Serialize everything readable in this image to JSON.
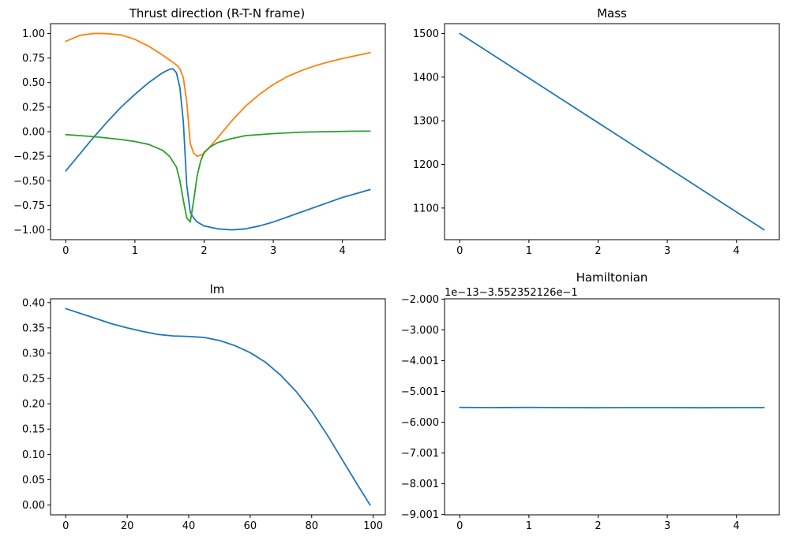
{
  "chart_data": [
    {
      "id": "thrust",
      "type": "line",
      "title": "Thrust direction (R-T-N frame)",
      "xlim": [
        -0.22,
        4.62
      ],
      "ylim": [
        -1.1,
        1.1
      ],
      "xticks": [
        0,
        1,
        2,
        3,
        4
      ],
      "xtick_labels": [
        "0",
        "1",
        "2",
        "3",
        "4"
      ],
      "yticks": [
        1.0,
        0.75,
        0.5,
        0.25,
        0.0,
        -0.25,
        -0.5,
        -0.75,
        -1.0
      ],
      "ytick_labels": [
        "1.00",
        "0.75",
        "0.50",
        "0.25",
        "0.00",
        "−0.25",
        "−0.50",
        "−0.75",
        "−1.00"
      ],
      "series": [
        {
          "color": "#1f77b4",
          "x": [
            0,
            0.2,
            0.4,
            0.6,
            0.8,
            1.0,
            1.2,
            1.4,
            1.5,
            1.55,
            1.6,
            1.65,
            1.7,
            1.75,
            1.8,
            1.85,
            1.9,
            2.0,
            2.2,
            2.4,
            2.6,
            2.8,
            3.0,
            3.2,
            3.4,
            3.6,
            3.8,
            4.0,
            4.2,
            4.4
          ],
          "y": [
            -0.4,
            -0.23,
            -0.06,
            0.1,
            0.25,
            0.38,
            0.5,
            0.6,
            0.635,
            0.64,
            0.6,
            0.45,
            0.1,
            -0.55,
            -0.82,
            -0.88,
            -0.92,
            -0.96,
            -0.99,
            -1.0,
            -0.99,
            -0.96,
            -0.92,
            -0.87,
            -0.82,
            -0.77,
            -0.72,
            -0.67,
            -0.63,
            -0.59
          ]
        },
        {
          "color": "#ff7f0e",
          "x": [
            0,
            0.2,
            0.4,
            0.5,
            0.6,
            0.8,
            1.0,
            1.2,
            1.4,
            1.6,
            1.65,
            1.7,
            1.75,
            1.8,
            1.85,
            1.9,
            1.95,
            2.0,
            2.1,
            2.2,
            2.4,
            2.6,
            2.8,
            3.0,
            3.2,
            3.4,
            3.6,
            3.8,
            4.0,
            4.2,
            4.4
          ],
          "y": [
            0.92,
            0.98,
            1.0,
            1.0,
            0.998,
            0.985,
            0.94,
            0.87,
            0.78,
            0.68,
            0.64,
            0.55,
            0.3,
            -0.12,
            -0.22,
            -0.25,
            -0.24,
            -0.22,
            -0.14,
            -0.06,
            0.11,
            0.26,
            0.38,
            0.48,
            0.56,
            0.62,
            0.67,
            0.71,
            0.745,
            0.775,
            0.805
          ]
        },
        {
          "color": "#2ca02c",
          "x": [
            0,
            0.4,
            0.8,
            1.0,
            1.2,
            1.4,
            1.5,
            1.6,
            1.65,
            1.7,
            1.75,
            1.8,
            1.85,
            1.9,
            1.95,
            2.0,
            2.1,
            2.2,
            2.4,
            2.6,
            3.0,
            3.4,
            3.8,
            4.2,
            4.4
          ],
          "y": [
            -0.03,
            -0.05,
            -0.08,
            -0.1,
            -0.13,
            -0.19,
            -0.25,
            -0.36,
            -0.5,
            -0.7,
            -0.88,
            -0.92,
            -0.7,
            -0.45,
            -0.3,
            -0.21,
            -0.15,
            -0.11,
            -0.07,
            -0.04,
            -0.02,
            -0.005,
            0.0,
            0.005,
            0.005
          ]
        }
      ]
    },
    {
      "id": "mass",
      "type": "line",
      "title": "Mass",
      "xlim": [
        -0.22,
        4.62
      ],
      "ylim": [
        1027.5,
        1522.5
      ],
      "xticks": [
        0,
        1,
        2,
        3,
        4
      ],
      "xtick_labels": [
        "0",
        "1",
        "2",
        "3",
        "4"
      ],
      "yticks": [
        1500,
        1400,
        1300,
        1200,
        1100
      ],
      "ytick_labels": [
        "1500",
        "1400",
        "1300",
        "1200",
        "1100"
      ],
      "series": [
        {
          "color": "#1f77b4",
          "x": [
            0,
            4.4
          ],
          "y": [
            1500,
            1050
          ]
        }
      ]
    },
    {
      "id": "lm",
      "type": "line",
      "title": "lm",
      "xlim": [
        -4.95,
        103.95
      ],
      "ylim": [
        -0.0194,
        0.4074
      ],
      "xticks": [
        0,
        20,
        40,
        60,
        80,
        100
      ],
      "xtick_labels": [
        "0",
        "20",
        "40",
        "60",
        "80",
        "100"
      ],
      "yticks": [
        0.4,
        0.35,
        0.3,
        0.25,
        0.2,
        0.15,
        0.1,
        0.05,
        0.0
      ],
      "ytick_labels": [
        "0.40",
        "0.35",
        "0.30",
        "0.25",
        "0.20",
        "0.15",
        "0.10",
        "0.05",
        "0.00"
      ],
      "series": [
        {
          "color": "#1f77b4",
          "x": [
            0,
            5,
            10,
            15,
            20,
            25,
            30,
            35,
            40,
            45,
            50,
            55,
            60,
            65,
            70,
            75,
            80,
            85,
            90,
            95,
            99
          ],
          "y": [
            0.388,
            0.378,
            0.368,
            0.358,
            0.35,
            0.343,
            0.337,
            0.334,
            0.333,
            0.331,
            0.325,
            0.315,
            0.301,
            0.282,
            0.256,
            0.224,
            0.185,
            0.139,
            0.089,
            0.039,
            0.0
          ]
        }
      ]
    },
    {
      "id": "hamiltonian",
      "type": "line",
      "title": "Hamiltonian",
      "offset_label": "1e−13−3.552352126e−1",
      "xlim": [
        -0.22,
        4.62
      ],
      "ylim": [
        -9.01,
        -1.99
      ],
      "xticks": [
        0,
        1,
        2,
        3,
        4
      ],
      "xtick_labels": [
        "0",
        "1",
        "2",
        "3",
        "4"
      ],
      "yticks": [
        -2.0,
        -3.0,
        -4.001,
        -5.001,
        -6.0,
        -7.001,
        -8.001,
        -9.001
      ],
      "ytick_labels": [
        "−2.000",
        "−3.000",
        "−4.001",
        "−5.001",
        "−6.000",
        "−7.001",
        "−8.001",
        "−9.001"
      ],
      "series": [
        {
          "color": "#1f77b4",
          "x": [
            0,
            0.5,
            1.0,
            1.5,
            2.0,
            2.5,
            3.0,
            3.5,
            4.0,
            4.4
          ],
          "y": [
            -5.52,
            -5.525,
            -5.52,
            -5.525,
            -5.53,
            -5.525,
            -5.525,
            -5.53,
            -5.525,
            -5.525
          ]
        }
      ]
    }
  ]
}
